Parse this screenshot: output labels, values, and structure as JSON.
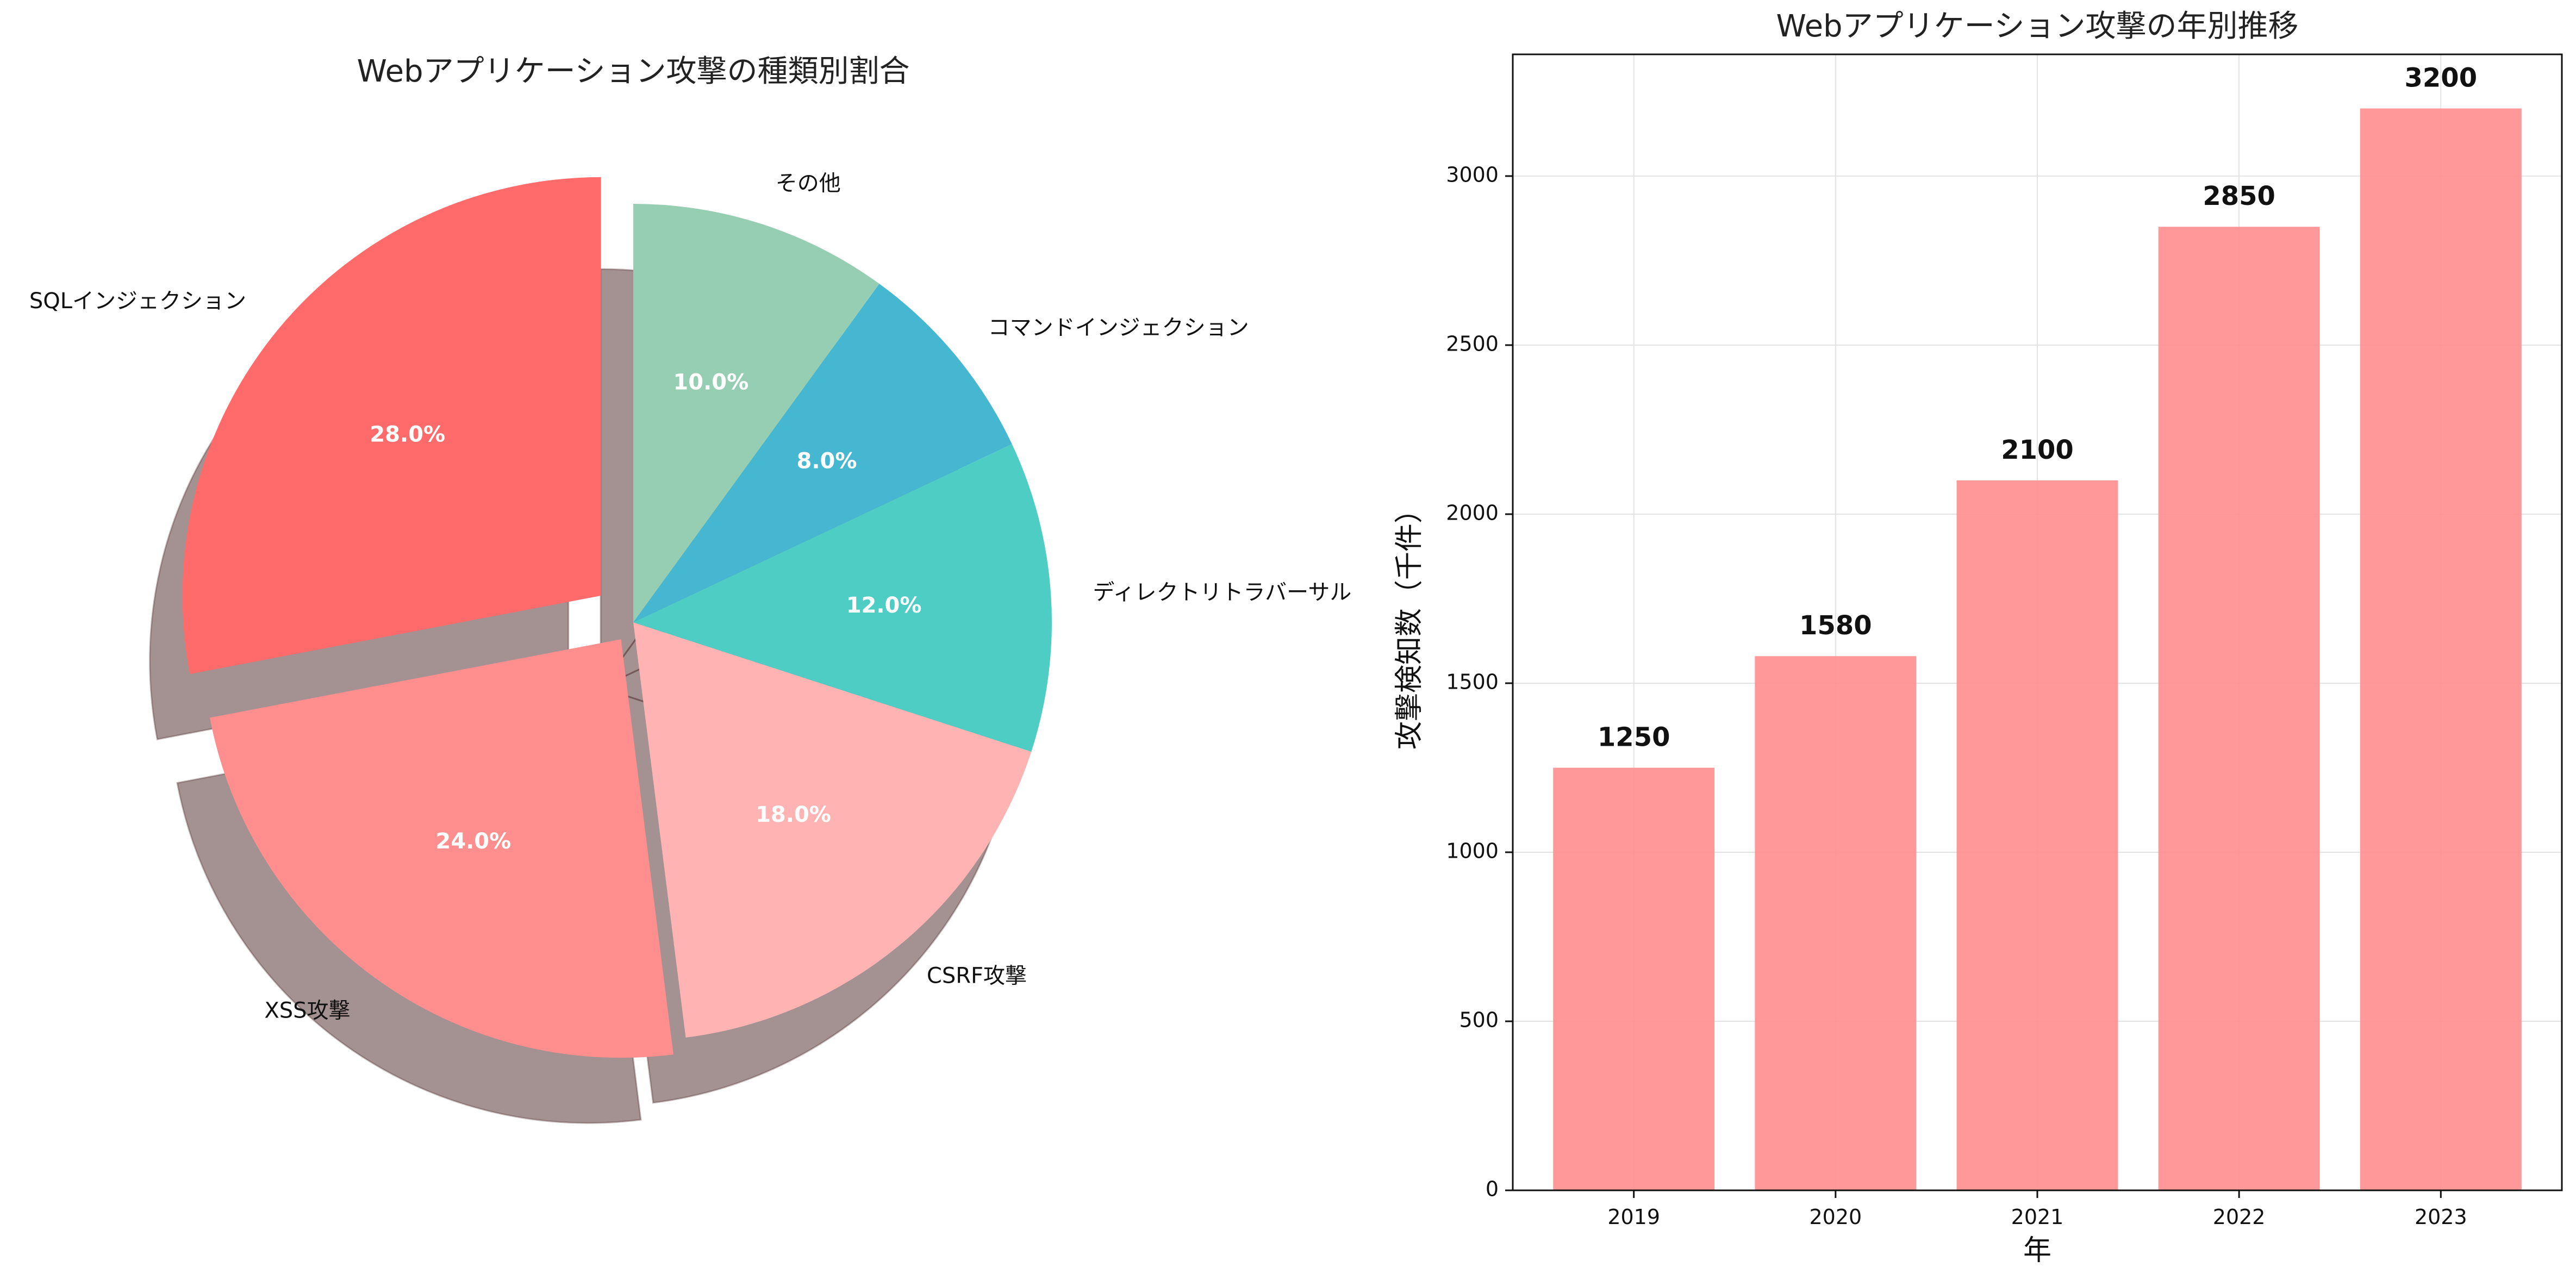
{
  "chart_data": [
    {
      "type": "pie",
      "title": "Webアプリケーション攻撃の種類別割合",
      "categories": [
        "SQLインジェクション",
        "XSS攻撃",
        "CSRF攻撃",
        "ディレクトリトラバーサル",
        "コマンドインジェクション",
        "その他"
      ],
      "values": [
        28,
        24,
        18,
        12,
        8,
        10
      ],
      "percent_labels": [
        "28.0%",
        "24.0%",
        "18.0%",
        "12.0%",
        "8.0%",
        "10.0%"
      ],
      "colors": [
        "#FF6B6B",
        "#FF8E8E",
        "#FFB3B3",
        "#4ECDC4",
        "#45B7D1",
        "#96CEB4"
      ],
      "explode": [
        0.1,
        0.05,
        0,
        0,
        0,
        0
      ],
      "start_angle_deg": 90,
      "shadow": true
    },
    {
      "type": "bar",
      "title": "Webアプリケーション攻撃の年別推移",
      "categories": [
        "2019",
        "2020",
        "2021",
        "2022",
        "2023"
      ],
      "values": [
        1250,
        1580,
        2100,
        2850,
        3200
      ],
      "value_labels": [
        "1250",
        "1580",
        "2100",
        "2850",
        "3200"
      ],
      "xlabel": "年",
      "ylabel": "攻撃検知数（千件）",
      "ylim": [
        0,
        3360
      ],
      "yticks": [
        0,
        500,
        1000,
        1500,
        2000,
        2500,
        3000
      ],
      "ytick_labels": [
        "0",
        "500",
        "1000",
        "1500",
        "2000",
        "2500",
        "3000"
      ],
      "color": "#FF8E8E",
      "grid": true
    }
  ]
}
